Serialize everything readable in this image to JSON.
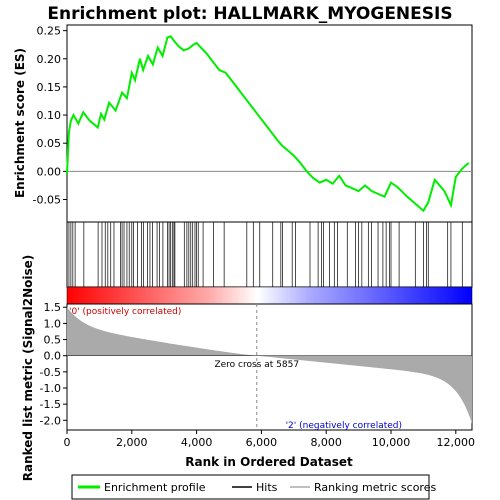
{
  "chart_data": {
    "type": "line",
    "title": "Enrichment plot: HALLMARK_MYOGENESIS",
    "xlabel": "Rank in Ordered Dataset",
    "ylabel_top": "Enrichment score (ES)",
    "ylabel_bottom": "Ranked list metric (Signal2Noise)",
    "xlim": [
      0,
      12500
    ],
    "ylim_es": [
      -0.09,
      0.26
    ],
    "ylim_metric": [
      -2.3,
      1.6
    ],
    "x_ticks": [
      0,
      2000,
      4000,
      6000,
      8000,
      10000,
      12000
    ],
    "x_tick_labels": [
      "0",
      "2,000",
      "4,000",
      "6,000",
      "8,000",
      "10,000",
      "12,000"
    ],
    "es_ticks": [
      -0.05,
      0.0,
      0.05,
      0.1,
      0.15,
      0.2,
      0.25
    ],
    "es_tick_labels": [
      "-0.05",
      "0.00",
      "0.05",
      "0.10",
      "0.15",
      "0.20",
      "0.25"
    ],
    "metric_ticks": [
      1.5,
      1.0,
      0.5,
      0.0,
      -0.5,
      -1.0,
      -1.5,
      -2.0
    ],
    "metric_tick_labels": [
      "1.5",
      "1.0",
      "0.5",
      "0.0",
      "-0.5",
      "-1.0",
      "-1.5",
      "-2.0"
    ],
    "zero_cross": 5857,
    "zero_cross_label": "Zero cross at 5857",
    "positive_label": "'0' (positively correlated)",
    "negative_label": "'2' (negatively correlated)",
    "es_curve": {
      "x": [
        0,
        60,
        120,
        200,
        350,
        500,
        700,
        950,
        1050,
        1150,
        1300,
        1500,
        1700,
        1850,
        2000,
        2100,
        2250,
        2350,
        2500,
        2650,
        2800,
        2950,
        3100,
        3200,
        3300,
        3450,
        3600,
        3750,
        3900,
        4000,
        4100,
        4300,
        4500,
        4700,
        4900,
        5100,
        5300,
        5500,
        5700,
        5900,
        6100,
        6300,
        6500,
        6650,
        6800,
        7000,
        7200,
        7400,
        7600,
        7800,
        8000,
        8200,
        8400,
        8600,
        8800,
        9000,
        9200,
        9400,
        9600,
        9800,
        10000,
        10200,
        10500,
        10800,
        11000,
        11150,
        11350,
        11650,
        11850,
        12000,
        12200,
        12400
      ],
      "y": [
        -0.005,
        0.07,
        0.09,
        0.1,
        0.085,
        0.105,
        0.09,
        0.078,
        0.102,
        0.092,
        0.122,
        0.108,
        0.14,
        0.13,
        0.175,
        0.162,
        0.2,
        0.18,
        0.205,
        0.19,
        0.22,
        0.205,
        0.238,
        0.24,
        0.232,
        0.222,
        0.215,
        0.218,
        0.225,
        0.228,
        0.222,
        0.21,
        0.195,
        0.18,
        0.175,
        0.16,
        0.145,
        0.13,
        0.115,
        0.1,
        0.085,
        0.07,
        0.055,
        0.045,
        0.038,
        0.028,
        0.015,
        0.0,
        -0.012,
        -0.02,
        -0.015,
        -0.022,
        -0.008,
        -0.025,
        -0.03,
        -0.035,
        -0.025,
        -0.035,
        -0.04,
        -0.045,
        -0.02,
        -0.028,
        -0.045,
        -0.06,
        -0.07,
        -0.055,
        -0.015,
        -0.035,
        -0.06,
        -0.01,
        0.005,
        0.015
      ]
    },
    "hit_positions": [
      60,
      120,
      180,
      250,
      520,
      960,
      1080,
      1180,
      1260,
      1350,
      1450,
      1650,
      1700,
      1760,
      1850,
      1920,
      2000,
      2050,
      2180,
      2300,
      2360,
      2480,
      2560,
      2640,
      2780,
      2860,
      2960,
      3100,
      3150,
      3200,
      3250,
      3300,
      3330,
      3620,
      3700,
      3760,
      3820,
      3880,
      3950,
      4000,
      4050,
      4200,
      4520,
      4850,
      5550,
      5750,
      5950,
      6350,
      6600,
      6650,
      6950,
      7050,
      7500,
      7750,
      7850,
      7920,
      8100,
      8250,
      8350,
      8650,
      8900,
      9000,
      9100,
      9300,
      9400,
      9600,
      9750,
      9850,
      9950,
      10000,
      10250,
      10750,
      11000,
      11100,
      11150,
      11750,
      11850,
      12200
    ],
    "metric_summary": {
      "start_value": 1.5,
      "zero_cross_rank": 5857,
      "end_value": -2.1,
      "shape": "monotonic decreasing"
    },
    "legend": [
      "Enrichment profile",
      "Hits",
      "Ranking metric scores"
    ],
    "colors": {
      "es_line": "#00ee00",
      "hits": "#000000",
      "metric_fill": "#aaaaaa",
      "zero_line": "#888888",
      "positive_text": "#cc0000",
      "negative_text": "#0000cc",
      "bar_positive": "#ff0000",
      "bar_neutral": "#ffffff",
      "bar_negative": "#0000ff"
    }
  }
}
